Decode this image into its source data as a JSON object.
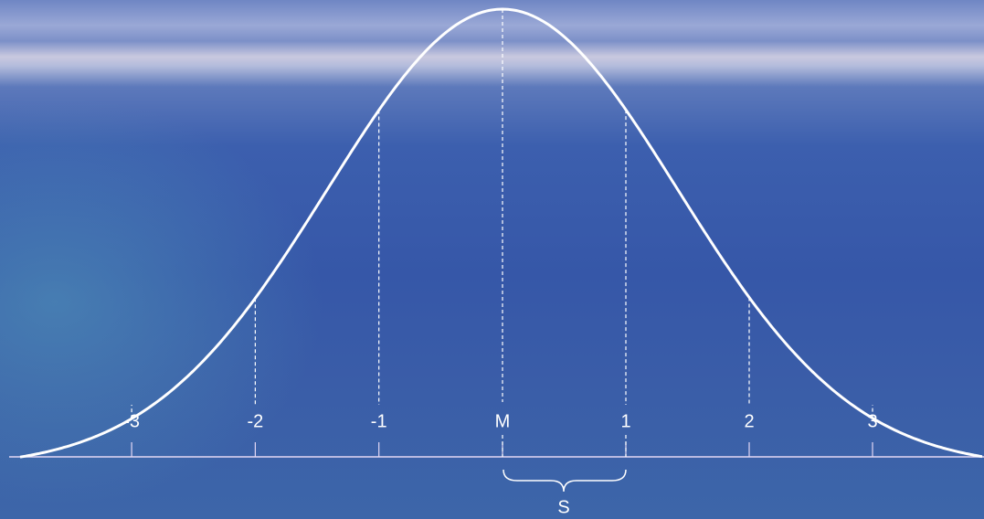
{
  "axis_labels": [
    "-3",
    "-2",
    "-1",
    "M",
    "1",
    "2",
    "3"
  ],
  "brace_label": "S"
}
